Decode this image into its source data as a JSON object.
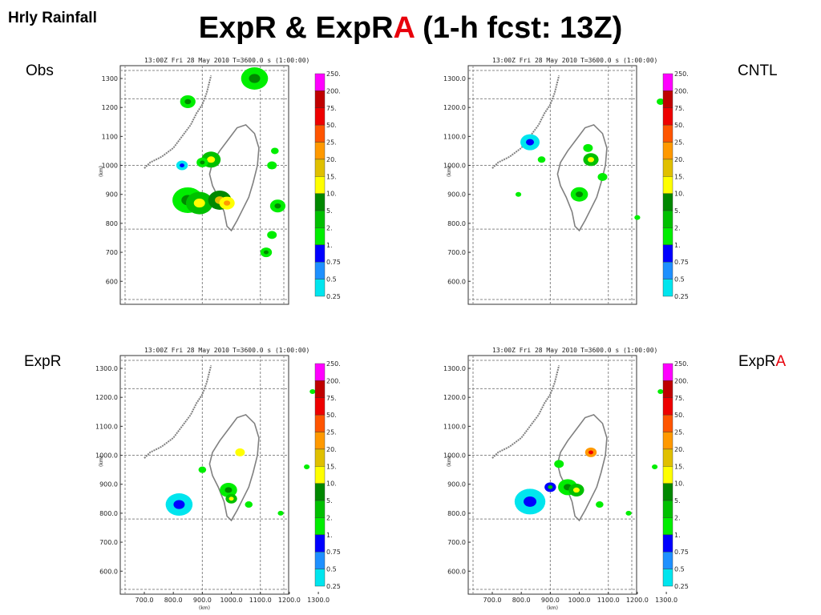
{
  "page": {
    "corner_title": "Hrly Rainfall",
    "title_part1": "ExpR & ExpR",
    "title_highlight": "A",
    "title_part2": " (1-h fcst: 13Z)"
  },
  "colors": {
    "accent_red": "#e8000b",
    "coast": "#808080",
    "grid": "#888888",
    "colorbar": [
      "#00e5ee",
      "#1e90ff",
      "#0000ff",
      "#00ee00",
      "#00c000",
      "#008800",
      "#ffff00",
      "#e0c000",
      "#ff9900",
      "#ff5500",
      "#ee0000",
      "#c00000",
      "#ff00ff"
    ]
  },
  "panels": [
    {
      "label": "Obs",
      "label_highlight": "",
      "header_time": "13:00Z Fri 28 May 2010",
      "header_t": "T=3600.0 s (1:00:00)",
      "y_ticks": [
        "1300",
        "1200",
        "1100",
        "1000",
        "900",
        "800",
        "700",
        "600"
      ],
      "x_ticks": [],
      "y_unit": "(km)",
      "x_unit": "",
      "colorbar_labels": [
        "250.",
        "200.",
        "75.",
        "50.",
        "25.",
        "20.",
        "15.",
        "10.",
        "5.",
        "2.",
        "1.",
        "0.75",
        "0.5",
        "0.25"
      ]
    },
    {
      "label": "CNTL",
      "label_highlight": "",
      "header_time": "13:00Z Fri 28 May 2010",
      "header_t": "T=3600.0 s (1:00:00)",
      "y_ticks": [
        "1300.0",
        "1200.0",
        "1100.0",
        "1000.0",
        "900.0",
        "800.0",
        "700.0",
        "600.0"
      ],
      "x_ticks": [],
      "y_unit": "(km)",
      "x_unit": "",
      "colorbar_labels": [
        "250.",
        "200.",
        "75.",
        "50.",
        "25.",
        "20.",
        "15.",
        "10.",
        "5.",
        "2.",
        "1.",
        "0.75",
        "0.5",
        "0.25"
      ]
    },
    {
      "label": "ExpR",
      "label_highlight": "",
      "header_time": "13:00Z Fri 28 May 2010",
      "header_t": "T=3600.0 s (1:00:00)",
      "y_ticks": [
        "1300.0",
        "1200.0",
        "1100.0",
        "1000.0",
        "900.0",
        "800.0",
        "700.0",
        "600.0"
      ],
      "x_ticks": [
        "700.0",
        "800.0",
        "900.0",
        "1000.0",
        "1100.0",
        "1200.0",
        "1300.0"
      ],
      "y_unit": "(km)",
      "x_unit": "(km)",
      "colorbar_labels": [
        "250.",
        "200.",
        "75.",
        "50.",
        "25.",
        "20.",
        "15.",
        "10.",
        "5.",
        "2.",
        "1.",
        "0.75",
        "0.5",
        "0.25"
      ]
    },
    {
      "label": "ExpR",
      "label_highlight": "A",
      "header_time": "13:00Z Fri 28 May 2010",
      "header_t": "T=3600.0 s (1:00:00)",
      "y_ticks": [
        "1300.0",
        "1200.0",
        "1100.0",
        "1000.0",
        "900.0",
        "800.0",
        "700.0",
        "600.0"
      ],
      "x_ticks": [
        "700.0",
        "800.0",
        "900.0",
        "1000.0",
        "1100.0",
        "1200.0",
        "1300.0"
      ],
      "y_unit": "(km)",
      "x_unit": "(km)",
      "colorbar_labels": [
        "250.",
        "200.",
        "75.",
        "50.",
        "25.",
        "20.",
        "15.",
        "10.",
        "5.",
        "2.",
        "1.",
        "0.75",
        "0.5",
        "0.25"
      ]
    }
  ]
}
